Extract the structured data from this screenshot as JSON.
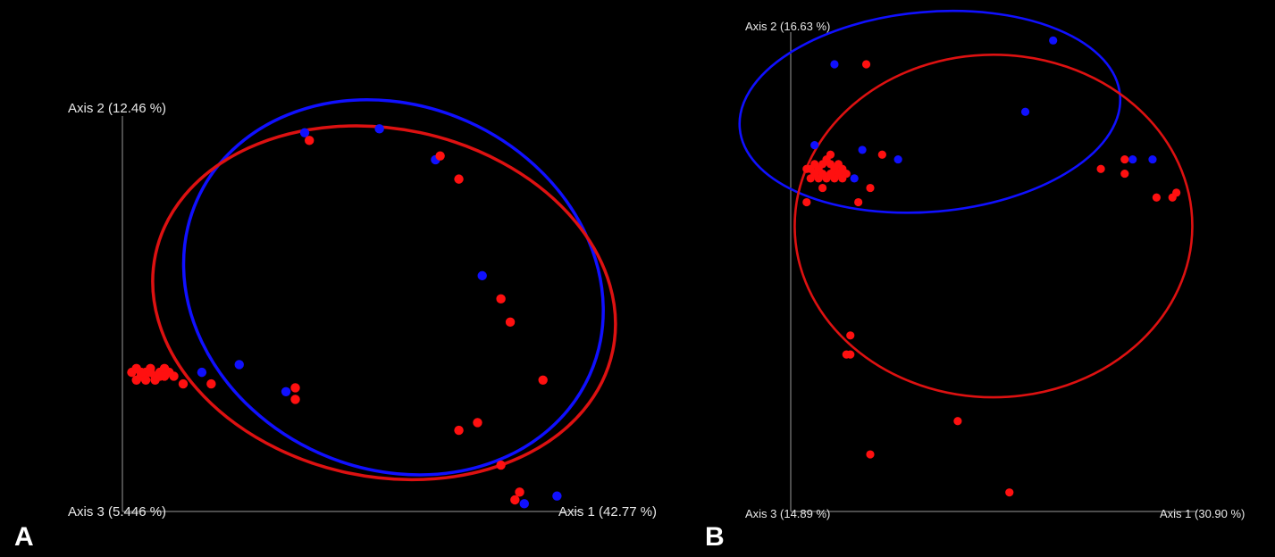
{
  "chart_data": [
    {
      "type": "scatter",
      "panel": "A",
      "axes": {
        "x": "Axis 1 (42.77 %)",
        "y": "Axis 2 (12.46 %)",
        "z": "Axis 3 (5.446 %)"
      },
      "series": [
        {
          "color": "#1010ff",
          "points": [
            [
              0.39,
              0.98
            ],
            [
              0.55,
              0.99
            ],
            [
              0.67,
              0.91
            ],
            [
              0.77,
              0.61
            ],
            [
              0.25,
              0.38
            ],
            [
              0.17,
              0.36
            ],
            [
              0.35,
              0.31
            ],
            [
              0.86,
              0.02
            ],
            [
              0.93,
              0.04
            ]
          ]
        },
        {
          "color": "#ff1010",
          "points": [
            [
              0.4,
              0.96
            ],
            [
              0.68,
              0.92
            ],
            [
              0.72,
              0.86
            ],
            [
              0.81,
              0.55
            ],
            [
              0.83,
              0.49
            ],
            [
              0.9,
              0.34
            ],
            [
              0.72,
              0.21
            ],
            [
              0.76,
              0.23
            ],
            [
              0.81,
              0.12
            ],
            [
              0.19,
              0.33
            ],
            [
              0.37,
              0.32
            ],
            [
              0.37,
              0.29
            ],
            [
              0.11,
              0.35
            ],
            [
              0.13,
              0.33
            ],
            [
              0.84,
              0.03
            ],
            [
              0.85,
              0.05
            ],
            [
              0.02,
              0.36
            ],
            [
              0.03,
              0.37
            ],
            [
              0.04,
              0.35
            ],
            [
              0.05,
              0.36
            ],
            [
              0.06,
              0.37
            ],
            [
              0.07,
              0.35
            ],
            [
              0.08,
              0.36
            ],
            [
              0.09,
              0.37
            ],
            [
              0.03,
              0.34
            ],
            [
              0.05,
              0.34
            ],
            [
              0.07,
              0.34
            ],
            [
              0.09,
              0.35
            ],
            [
              0.1,
              0.36
            ],
            [
              0.04,
              0.36
            ],
            [
              0.06,
              0.36
            ],
            [
              0.08,
              0.35
            ]
          ]
        }
      ],
      "ellipses": [
        {
          "color": "#1010ff",
          "cx": 0.58,
          "cy": 0.58,
          "rx": 0.46,
          "ry": 0.47,
          "angle_deg": 24
        },
        {
          "color": "#dd1111",
          "cx": 0.56,
          "cy": 0.54,
          "rx": 0.5,
          "ry": 0.45,
          "angle_deg": 12
        }
      ]
    },
    {
      "type": "scatter",
      "panel": "B",
      "axes": {
        "x": "Axis 1 (30.90 %)",
        "y": "Axis 2 (16.63 %)",
        "z": "Axis 3 (14.89 %)"
      },
      "series": [
        {
          "color": "#1010ff",
          "points": [
            [
              0.11,
              0.94
            ],
            [
              0.66,
              0.99
            ],
            [
              0.59,
              0.84
            ],
            [
              0.06,
              0.77
            ],
            [
              0.18,
              0.76
            ],
            [
              0.27,
              0.74
            ],
            [
              0.13,
              0.71
            ],
            [
              0.16,
              0.7
            ],
            [
              0.86,
              0.74
            ],
            [
              0.91,
              0.74
            ]
          ]
        },
        {
          "color": "#ff1010",
          "points": [
            [
              0.19,
              0.94
            ],
            [
              0.23,
              0.75
            ],
            [
              0.78,
              0.72
            ],
            [
              0.84,
              0.74
            ],
            [
              0.84,
              0.71
            ],
            [
              0.92,
              0.66
            ],
            [
              0.96,
              0.66
            ],
            [
              0.97,
              0.67
            ],
            [
              0.2,
              0.68
            ],
            [
              0.17,
              0.65
            ],
            [
              0.04,
              0.65
            ],
            [
              0.15,
              0.37
            ],
            [
              0.14,
              0.33
            ],
            [
              0.15,
              0.33
            ],
            [
              0.42,
              0.19
            ],
            [
              0.2,
              0.12
            ],
            [
              0.55,
              0.04
            ],
            [
              0.04,
              0.72
            ],
            [
              0.05,
              0.72
            ],
            [
              0.06,
              0.73
            ],
            [
              0.07,
              0.72
            ],
            [
              0.08,
              0.73
            ],
            [
              0.09,
              0.74
            ],
            [
              0.1,
              0.73
            ],
            [
              0.11,
              0.72
            ],
            [
              0.12,
              0.71
            ],
            [
              0.13,
              0.72
            ],
            [
              0.05,
              0.7
            ],
            [
              0.07,
              0.7
            ],
            [
              0.09,
              0.7
            ],
            [
              0.11,
              0.7
            ],
            [
              0.13,
              0.7
            ],
            [
              0.14,
              0.71
            ],
            [
              0.08,
              0.68
            ],
            [
              0.1,
              0.75
            ],
            [
              0.06,
              0.71
            ],
            [
              0.08,
              0.71
            ],
            [
              0.1,
              0.71
            ],
            [
              0.12,
              0.73
            ]
          ]
        }
      ],
      "ellipses": [
        {
          "color": "#1010ff",
          "cx": 0.35,
          "cy": 0.84,
          "rx": 0.48,
          "ry": 0.21,
          "angle_deg": -5
        },
        {
          "color": "#dd1111",
          "cx": 0.51,
          "cy": 0.6,
          "rx": 0.5,
          "ry": 0.36,
          "angle_deg": 0
        }
      ]
    }
  ],
  "panels": {
    "a": {
      "letter": "A",
      "x_label": "Axis 1 (42.77 %)",
      "y_label": "Axis 2 (12.46 %)",
      "z_label": "Axis 3 (5.446 %)"
    },
    "b": {
      "letter": "B",
      "x_label": "Axis 1 (30.90 %)",
      "y_label": "Axis 2 (16.63 %)",
      "z_label": "Axis 3 (14.89 %)"
    }
  }
}
